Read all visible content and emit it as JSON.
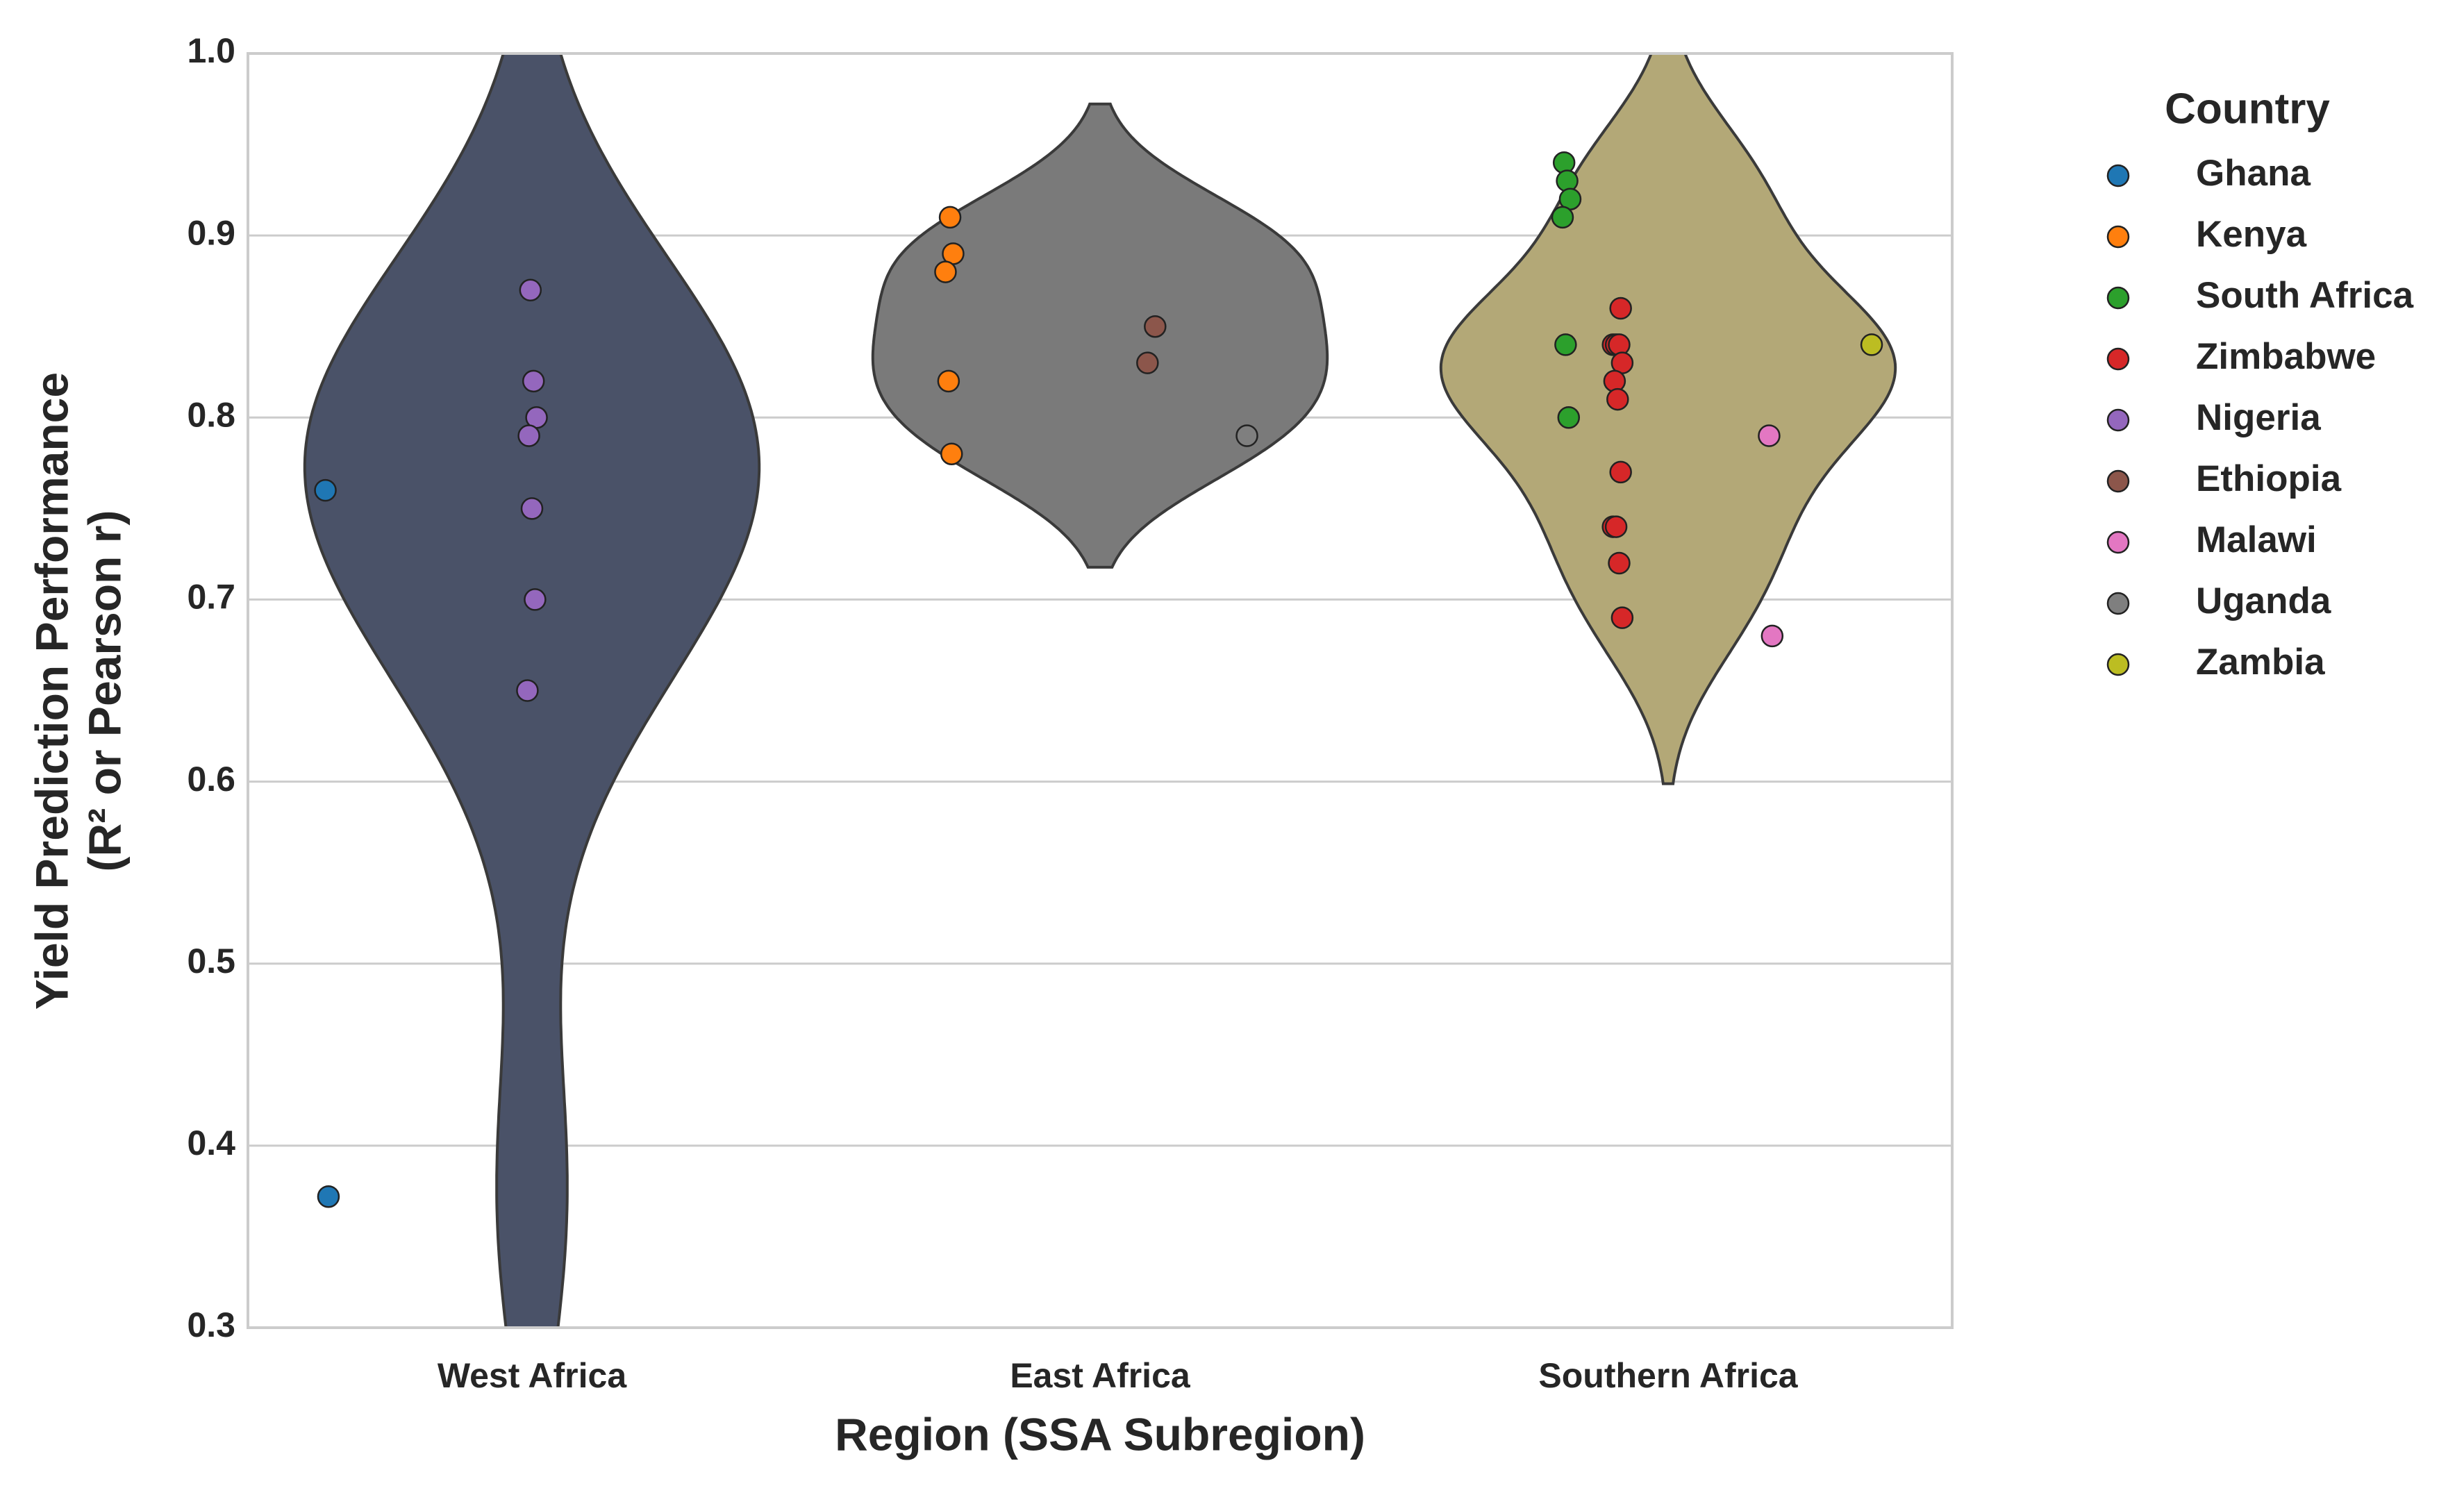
{
  "chart_data": {
    "type": "violin",
    "xlabel": "Region (SSA Subregion)",
    "ylabel": [
      "Yield Prediction Performance",
      "(R² or Pearson r)"
    ],
    "categories": [
      "West Africa",
      "East Africa",
      "Southern Africa"
    ],
    "violin_colors": [
      "#4a5268",
      "#7a7a7a",
      "#b3a877"
    ],
    "ylim": [
      0.3,
      1.0
    ],
    "yticks": [
      0.3,
      0.4,
      0.5,
      0.6,
      0.7,
      0.8,
      0.9,
      {
        "value": 1.0,
        "label": "1.0"
      }
    ],
    "grid": true,
    "legend_title": "Country",
    "legend": "right",
    "series": [
      {
        "name": "Ghana",
        "color": "#1f77b4",
        "x": [
          "West Africa",
          "West Africa"
        ],
        "values": [
          0.76,
          0.372
        ]
      },
      {
        "name": "Kenya",
        "color": "#ff7f0e",
        "x": [
          "East Africa",
          "East Africa",
          "East Africa",
          "East Africa",
          "East Africa"
        ],
        "values": [
          0.91,
          0.89,
          0.88,
          0.82,
          0.78
        ]
      },
      {
        "name": "South Africa",
        "color": "#2ca02c",
        "x": [
          "Southern Africa",
          "Southern Africa",
          "Southern Africa",
          "Southern Africa",
          "Southern Africa",
          "Southern Africa"
        ],
        "values": [
          0.94,
          0.93,
          0.92,
          0.91,
          0.84,
          0.8
        ]
      },
      {
        "name": "Zimbabwe",
        "color": "#d62728",
        "x": [
          "Southern Africa",
          "Southern Africa",
          "Southern Africa",
          "Southern Africa",
          "Southern Africa",
          "Southern Africa",
          "Southern Africa",
          "Southern Africa",
          "Southern Africa",
          "Southern Africa",
          "Southern Africa",
          "Southern Africa"
        ],
        "values": [
          0.86,
          0.84,
          0.84,
          0.84,
          0.83,
          0.82,
          0.81,
          0.77,
          0.74,
          0.74,
          0.72,
          0.69
        ]
      },
      {
        "name": "Nigeria",
        "color": "#9467bd",
        "x": [
          "West Africa",
          "West Africa",
          "West Africa",
          "West Africa",
          "West Africa",
          "West Africa",
          "West Africa"
        ],
        "values": [
          0.87,
          0.82,
          0.8,
          0.79,
          0.75,
          0.7,
          0.65
        ]
      },
      {
        "name": "Ethiopia",
        "color": "#8c564b",
        "x": [
          "East Africa",
          "East Africa"
        ],
        "values": [
          0.85,
          0.83
        ]
      },
      {
        "name": "Malawi",
        "color": "#e377c2",
        "x": [
          "Southern Africa",
          "Southern Africa"
        ],
        "values": [
          0.79,
          0.68
        ]
      },
      {
        "name": "Uganda",
        "color": "#7f7f7f",
        "x": [
          "East Africa"
        ],
        "values": [
          0.79
        ]
      },
      {
        "name": "Zambia",
        "color": "#bcbd22",
        "x": [
          "Southern Africa"
        ],
        "values": [
          0.84
        ]
      }
    ]
  }
}
